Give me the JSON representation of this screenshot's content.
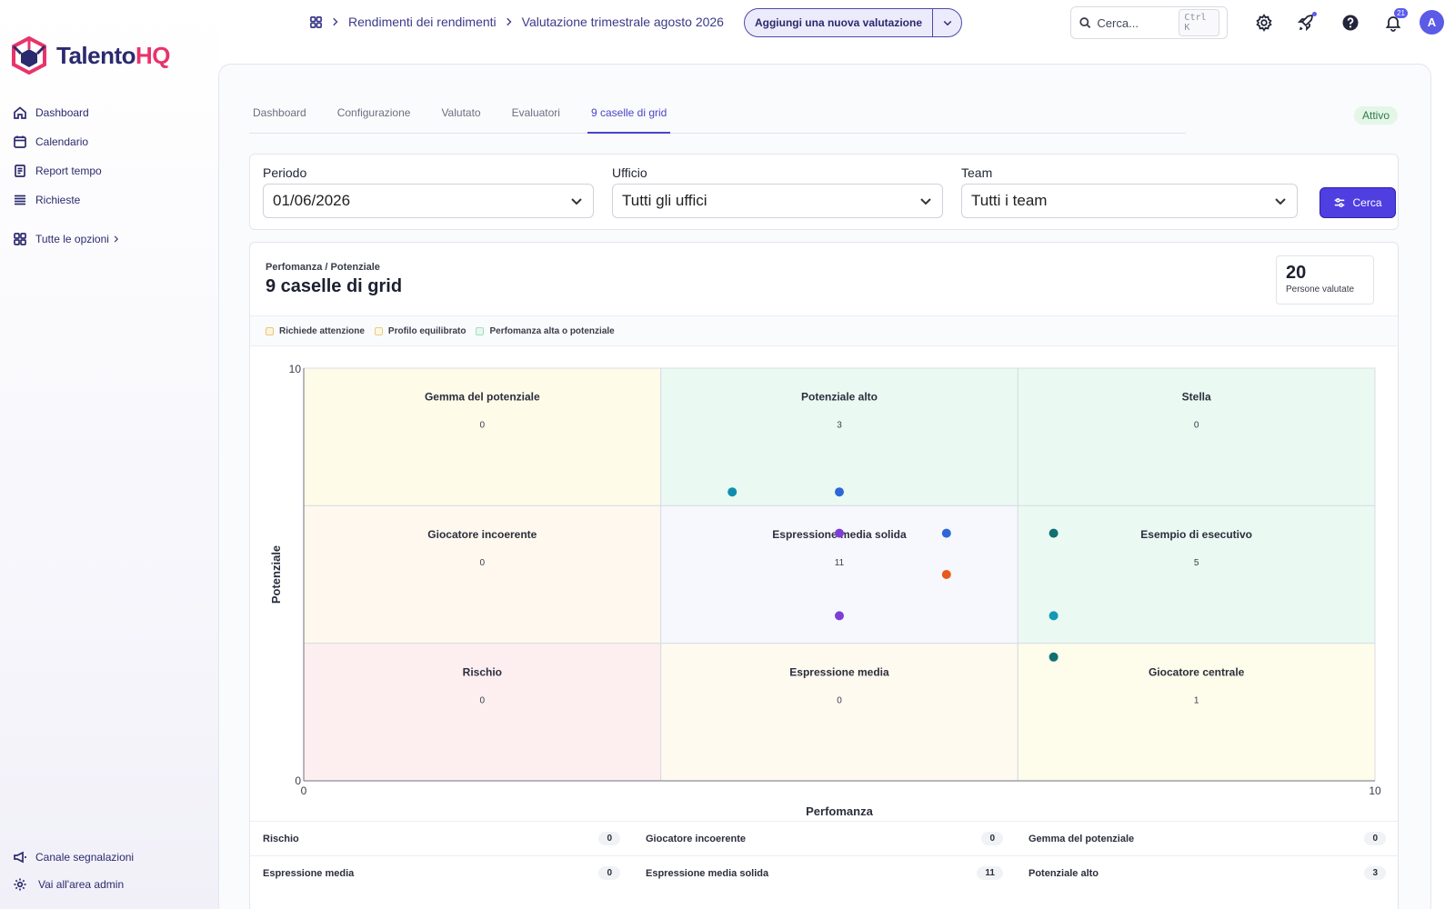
{
  "brand": {
    "part1": "Talento",
    "part2": "HQ"
  },
  "sidebar": {
    "items": [
      {
        "label": "Dashboard",
        "icon": "home-icon"
      },
      {
        "label": "Calendario",
        "icon": "calendar-icon"
      },
      {
        "label": "Report tempo",
        "icon": "report-icon"
      },
      {
        "label": "Richieste",
        "icon": "list-icon"
      },
      {
        "label": "Tutte le opzioni",
        "icon": "grid-icon"
      }
    ],
    "bottom": [
      {
        "label": "Canale segnalazioni",
        "icon": "megaphone-icon"
      },
      {
        "label": "Vai all'area admin",
        "icon": "gear-icon"
      }
    ]
  },
  "topbar": {
    "breadcrumb": [
      "Rendimenti dei rendimenti",
      "Valutazione trimestrale agosto 2026"
    ],
    "add_button": "Aggiungi una nuova valutazione",
    "search_placeholder": "Cerca...",
    "search_shortcut": "Ctrl K",
    "notifications_count": "21",
    "avatar_initial": "A"
  },
  "tabs": [
    "Dashboard",
    "Configurazione",
    "Valutato",
    "Evaluatori",
    "9 caselle di grid"
  ],
  "active_tab": 4,
  "status": "Attivo",
  "filters": {
    "period_label": "Periodo",
    "period_value": "01/06/2026",
    "office_label": "Ufficio",
    "office_value": "Tutti gli uffici",
    "team_label": "Team",
    "team_value": "Tutti i team",
    "search_button": "Cerca"
  },
  "grid": {
    "subtitle": "Perfomanza / Potenziale",
    "title": "9 caselle di grid",
    "count_value": "20",
    "count_label": "Persone valutate",
    "legend": [
      {
        "label": "Richiede attenzione",
        "fill": "#fdf3dc",
        "border": "#e8c97a"
      },
      {
        "label": "Profilo equilibrato",
        "fill": "#fdf6df",
        "border": "#e6cf86"
      },
      {
        "label": "Perfomanza alta o potenziale",
        "fill": "#e6f7ef",
        "border": "#a8dcc2"
      }
    ]
  },
  "chart_data": {
    "type": "scatter",
    "xlabel": "Perfomanza",
    "ylabel": "Potenziale",
    "xlim": [
      0,
      10
    ],
    "ylim": [
      0,
      10
    ],
    "x_ticks": [
      "0",
      "10"
    ],
    "y_ticks": [
      "0",
      "10"
    ],
    "cells": [
      {
        "row": 0,
        "col": 0,
        "label": "Gemma del potenziale",
        "count": "0",
        "fill": "#fefbe9"
      },
      {
        "row": 0,
        "col": 1,
        "label": "Potenziale alto",
        "count": "3",
        "fill": "#eafaf2"
      },
      {
        "row": 0,
        "col": 2,
        "label": "Stella",
        "count": "0",
        "fill": "#eafaf2"
      },
      {
        "row": 1,
        "col": 0,
        "label": "Giocatore incoerente",
        "count": "0",
        "fill": "#fef8ee"
      },
      {
        "row": 1,
        "col": 1,
        "label": "Espressione media solida",
        "count": "11",
        "fill": "#f6f8fd"
      },
      {
        "row": 1,
        "col": 2,
        "label": "Esempio di esecutivo",
        "count": "5",
        "fill": "#eafaf2"
      },
      {
        "row": 2,
        "col": 0,
        "label": "Rischio",
        "count": "0",
        "fill": "#fdeff0"
      },
      {
        "row": 2,
        "col": 1,
        "label": "Espressione media",
        "count": "0",
        "fill": "#fefaef"
      },
      {
        "row": 2,
        "col": 2,
        "label": "Giocatore centrale",
        "count": "1",
        "fill": "#fefcea"
      }
    ],
    "points": [
      {
        "x": 4.0,
        "y": 7.0,
        "color": "#0e8fb0"
      },
      {
        "x": 5.0,
        "y": 7.0,
        "color": "#2f67d8"
      },
      {
        "x": 5.0,
        "y": 6.0,
        "color": "#7d3ed6"
      },
      {
        "x": 6.0,
        "y": 6.0,
        "color": "#2f67d8"
      },
      {
        "x": 6.0,
        "y": 5.0,
        "color": "#e8591d"
      },
      {
        "x": 5.0,
        "y": 4.0,
        "color": "#7d3ed6"
      },
      {
        "x": 7.0,
        "y": 6.0,
        "color": "#0f6f72"
      },
      {
        "x": 7.0,
        "y": 4.0,
        "color": "#1598b6"
      },
      {
        "x": 7.0,
        "y": 3.0,
        "color": "#0f6f72"
      }
    ]
  },
  "summary": [
    [
      {
        "label": "Rischio",
        "count": "0"
      },
      {
        "label": "Giocatore incoerente",
        "count": "0"
      },
      {
        "label": "Gemma del potenziale",
        "count": "0"
      }
    ],
    [
      {
        "label": "Espressione media",
        "count": "0"
      },
      {
        "label": "Espressione media solida",
        "count": "11"
      },
      {
        "label": "Potenziale alto",
        "count": "3"
      }
    ]
  ]
}
